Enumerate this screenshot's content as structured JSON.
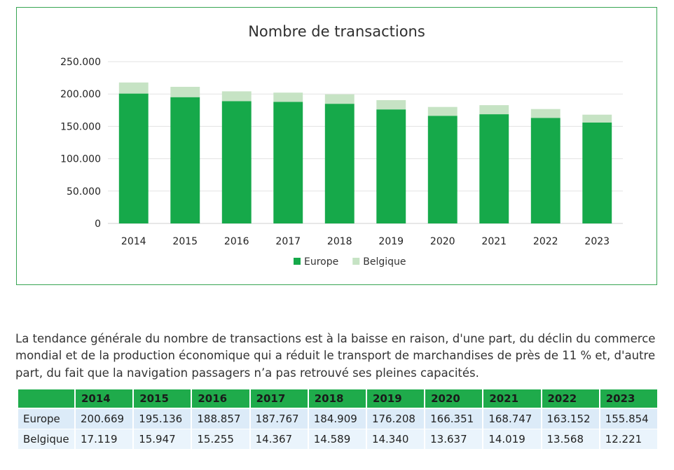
{
  "chart_data": {
    "type": "bar",
    "stacked": true,
    "title": "Nombre de transactions",
    "categories": [
      "2014",
      "2015",
      "2016",
      "2017",
      "2018",
      "2019",
      "2020",
      "2021",
      "2022",
      "2023"
    ],
    "series": [
      {
        "name": "Europe",
        "color": "#16a94a",
        "values": [
          200669,
          195136,
          188857,
          187767,
          184909,
          176208,
          166351,
          168747,
          163152,
          155854
        ]
      },
      {
        "name": "Belgique",
        "color": "#c6e3c4",
        "values": [
          17119,
          15947,
          15255,
          14367,
          14589,
          14340,
          13637,
          14019,
          13568,
          12221
        ]
      }
    ],
    "ylim": [
      0,
      250000
    ],
    "yticks": [
      0,
      50000,
      100000,
      150000,
      200000,
      250000
    ],
    "ytick_labels": [
      "0",
      "50.000",
      "100.000",
      "150.000",
      "200.000",
      "250.000"
    ],
    "xlabel": "",
    "ylabel": "",
    "grid": true,
    "legend_position": "bottom"
  },
  "description": "La tendance générale du nombre de transactions est à la baisse en raison, d'une part, du déclin du commerce mondial et de la production économique qui a réduit le transport de marchandises de près de 11 % et, d'autre part, du fait que la navigation passagers n’a pas retrouvé ses pleines capacités.",
  "table": {
    "headers": [
      "2014",
      "2015",
      "2016",
      "2017",
      "2018",
      "2019",
      "2020",
      "2021",
      "2022",
      "2023"
    ],
    "rows": [
      {
        "label": "Europe",
        "values": [
          "200.669",
          "195.136",
          "188.857",
          "187.767",
          "184.909",
          "176.208",
          "166.351",
          "168.747",
          "163.152",
          "155.854"
        ]
      },
      {
        "label": "Belgique",
        "values": [
          "17.119",
          "15.947",
          "15.255",
          "14.367",
          "14.589",
          "14.340",
          "13.637",
          "14.019",
          "13.568",
          "12.221"
        ]
      }
    ]
  }
}
